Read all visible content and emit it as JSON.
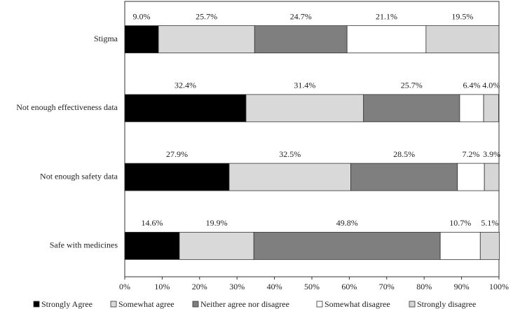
{
  "chart_data": {
    "type": "stacked-bar-horizontal",
    "categories": [
      "Stigma",
      "Not enough effectiveness data",
      "Not enough safety data",
      "Safe with medicines"
    ],
    "series": [
      {
        "name": "Strongly Agree",
        "color": "#000000",
        "values": [
          9.0,
          32.4,
          27.9,
          14.6
        ],
        "value_labels": [
          "9.0%",
          "32.4%",
          "27.9%",
          "14.6%"
        ]
      },
      {
        "name": "Somewhat agree",
        "color": "#d9d9d9",
        "values": [
          25.7,
          31.4,
          32.5,
          19.9
        ],
        "value_labels": [
          "25.7%",
          "31.4%",
          "32.5%",
          "19.9%"
        ]
      },
      {
        "name": "Neither agree nor disagree",
        "color": "#7f7f7f",
        "values": [
          24.7,
          25.7,
          28.5,
          49.8
        ],
        "value_labels": [
          "24.7%",
          "25.7%",
          "28.5%",
          "49.8%"
        ]
      },
      {
        "name": "Somewhat disagree",
        "color": "#ffffff",
        "values": [
          21.1,
          6.4,
          7.2,
          10.7
        ],
        "value_labels": [
          "21.1%",
          "6.4%",
          "7.2%",
          "10.7%"
        ]
      },
      {
        "name": "Strongly disagree",
        "color": "#d6d6d6",
        "values": [
          19.5,
          4.0,
          3.9,
          5.1
        ],
        "value_labels": [
          "19.5%",
          "4.0%",
          "3.9%",
          "5.1%"
        ]
      }
    ],
    "xlim": [
      0,
      100
    ],
    "xticks": [
      {
        "value": 0,
        "label": "0%"
      },
      {
        "value": 10,
        "label": "10%"
      },
      {
        "value": 20,
        "label": "20%"
      },
      {
        "value": 30,
        "label": "30%"
      },
      {
        "value": 40,
        "label": "40%"
      },
      {
        "value": 50,
        "label": "50%"
      },
      {
        "value": 60,
        "label": "60%"
      },
      {
        "value": 70,
        "label": "70%"
      },
      {
        "value": 80,
        "label": "80%"
      },
      {
        "value": 90,
        "label": "90%"
      },
      {
        "value": 100,
        "label": "100%"
      }
    ],
    "legend": "bottom"
  }
}
